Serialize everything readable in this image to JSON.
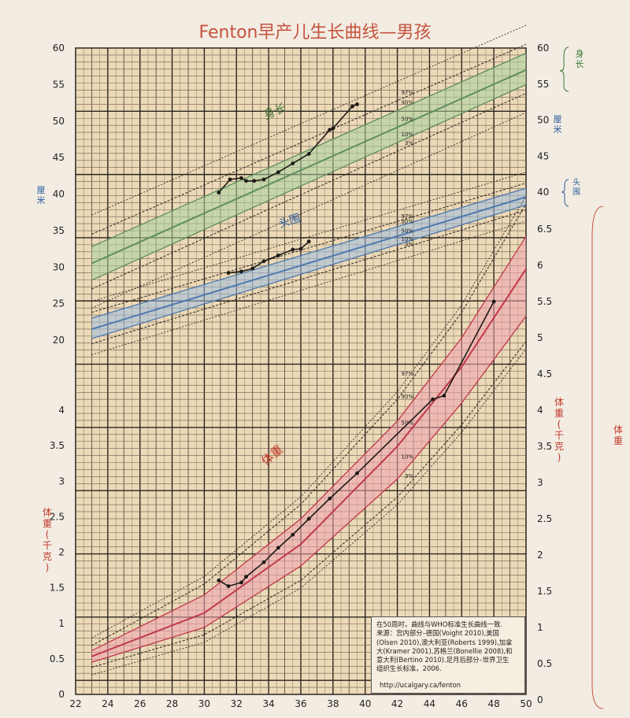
{
  "title": "Fenton早产儿生长曲线—男孩",
  "labels": {
    "length_curve": "身长",
    "head_curve": "头围",
    "weight_curve": "体重",
    "right_length": "身长",
    "right_head": "头围",
    "right_weight": "体重",
    "left_cm": "厘米",
    "right_cm": "厘米",
    "left_weight_unit": "体重(千克)",
    "right_weight_unit": "体重(千克)"
  },
  "colors": {
    "length": "#5e8f5e",
    "length_band": "#a9d1a0",
    "head": "#4f79b0",
    "head_band": "#9ebde0",
    "weight": "#c0394b",
    "weight_band": "#f0a3b0",
    "grid": "#2b2520",
    "paper": "#ecd9b7",
    "label_red": "#c0392b",
    "label_blue": "#2e5fa0"
  },
  "note": {
    "lines": [
      "在50周时，曲线与WHO标准生长曲线一致.",
      "来源：宫内部分–德国(Voight 2010),美国",
      "(Olsen 2010),澳大利亚(Roberts 1999),加拿",
      "大(Kramer 2001),苏格兰(Bonellie 2008),和",
      "意大利(Bertino 2010).足月后部分–世界卫生",
      "组织生长标准，2006."
    ],
    "url": "http://ucalgary.ca/fenton"
  },
  "chart_data": {
    "type": "line",
    "x_ticks": [
      22,
      24,
      26,
      28,
      30,
      32,
      34,
      36,
      38,
      40,
      42,
      44,
      46,
      48,
      50
    ],
    "xlim": [
      22,
      50
    ],
    "left_axis_cm_ticks": [
      60,
      55,
      50,
      45,
      40,
      35,
      30,
      25,
      20
    ],
    "left_axis_kg_ticks": [
      4,
      3.5,
      3,
      2.5,
      2,
      1.5,
      1,
      0.5,
      0
    ],
    "right_axis_cm_ticks": [
      60,
      55,
      50,
      45,
      40
    ],
    "right_axis_kg_ticks": [
      6.5,
      6,
      5.5,
      5,
      4.5,
      4,
      3.5,
      3,
      2.5,
      2,
      1.5,
      1,
      0.5,
      0
    ],
    "percentile_labels": [
      "97%",
      "90%",
      "50%",
      "10%",
      "3%"
    ],
    "length_percentiles": [
      {
        "name": "97%",
        "x": [
          23,
          50
        ],
        "y": [
          34.5,
          60.5
        ]
      },
      {
        "name": "90%",
        "x": [
          23,
          50
        ],
        "y": [
          32.8,
          59.3
        ]
      },
      {
        "name": "50%",
        "x": [
          23,
          50
        ],
        "y": [
          30.5,
          57.0
        ]
      },
      {
        "name": "10%",
        "x": [
          23,
          50
        ],
        "y": [
          28.2,
          55.0
        ]
      },
      {
        "name": "3%",
        "x": [
          23,
          50
        ],
        "y": [
          27.0,
          53.8
        ]
      }
    ],
    "head_percentiles": [
      {
        "name": "97%",
        "x": [
          23,
          50
        ],
        "y": [
          23.8,
          41.5
        ]
      },
      {
        "name": "90%",
        "x": [
          23,
          50
        ],
        "y": [
          23.0,
          40.8
        ]
      },
      {
        "name": "50%",
        "x": [
          23,
          50
        ],
        "y": [
          21.5,
          39.6
        ]
      },
      {
        "name": "10%",
        "x": [
          23,
          50
        ],
        "y": [
          20.2,
          38.5
        ]
      },
      {
        "name": "3%",
        "x": [
          23,
          50
        ],
        "y": [
          19.5,
          37.8
        ]
      }
    ],
    "weight_percentiles": [
      {
        "name": "97%",
        "x": [
          23,
          30,
          36,
          42,
          46,
          50
        ],
        "y": [
          0.75,
          1.6,
          2.7,
          4.15,
          5.35,
          6.85
        ]
      },
      {
        "name": "90%",
        "x": [
          23,
          30,
          36,
          42,
          46,
          50
        ],
        "y": [
          0.68,
          1.45,
          2.5,
          3.85,
          5.0,
          6.4
        ]
      },
      {
        "name": "50%",
        "x": [
          23,
          30,
          36,
          42,
          46,
          50
        ],
        "y": [
          0.6,
          1.2,
          2.15,
          3.5,
          4.6,
          5.95
        ]
      },
      {
        "name": "10%",
        "x": [
          23,
          30,
          36,
          42,
          46,
          50
        ],
        "y": [
          0.52,
          1.0,
          1.85,
          3.05,
          4.1,
          5.3
        ]
      },
      {
        "name": "3%",
        "x": [
          23,
          30,
          36,
          42,
          46,
          50
        ],
        "y": [
          0.45,
          0.9,
          1.65,
          2.8,
          3.8,
          4.95
        ]
      }
    ],
    "patient_length": {
      "x": [
        30.9,
        31.6,
        32.3,
        32.6,
        33.1,
        33.7,
        34.6,
        35.5,
        36.5,
        37.8,
        38.0,
        39.2,
        39.5
      ],
      "y": [
        40.2,
        42.0,
        42.2,
        41.8,
        41.8,
        42.0,
        43.0,
        44.2,
        45.5,
        48.8,
        49.0,
        52.0,
        52.3
      ]
    },
    "patient_head": {
      "x": [
        31.5,
        32.3,
        33.0,
        33.7,
        34.6,
        35.5,
        36.0,
        36.5
      ],
      "y": [
        29.2,
        29.4,
        29.8,
        30.8,
        31.6,
        32.4,
        32.5,
        33.5
      ]
    },
    "patient_weight": {
      "x": [
        30.9,
        31.5,
        32.3,
        32.6,
        33.7,
        34.6,
        35.5,
        36.5,
        37.8,
        39.5,
        44.2,
        44.9,
        48.0
      ],
      "y": [
        1.65,
        1.57,
        1.62,
        1.7,
        1.9,
        2.1,
        2.28,
        2.5,
        2.78,
        3.13,
        4.15,
        4.2,
        5.5
      ]
    }
  }
}
